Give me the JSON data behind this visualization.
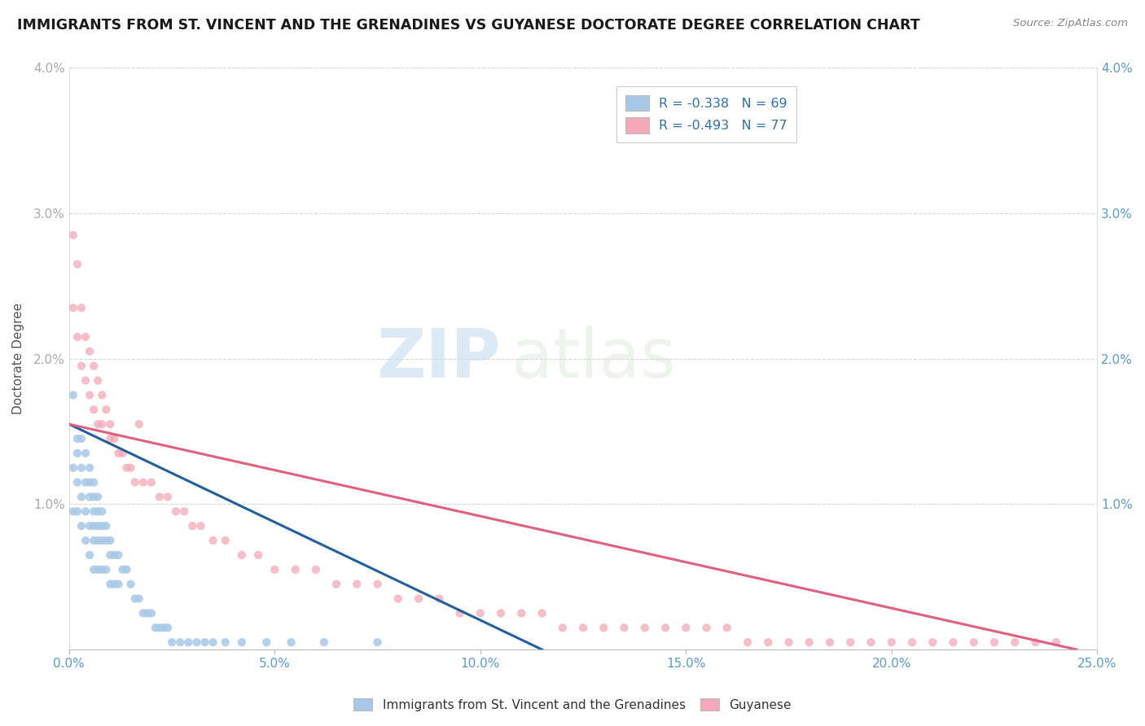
{
  "title": "IMMIGRANTS FROM ST. VINCENT AND THE GRENADINES VS GUYANESE DOCTORATE DEGREE CORRELATION CHART",
  "source_text": "Source: ZipAtlas.com",
  "ylabel": "Doctorate Degree",
  "xlim": [
    0.0,
    0.25
  ],
  "ylim": [
    0.0,
    0.04
  ],
  "xtick_values": [
    0.0,
    0.05,
    0.1,
    0.15,
    0.2,
    0.25
  ],
  "ytick_values": [
    0.0,
    0.01,
    0.02,
    0.03,
    0.04
  ],
  "legend_labels": [
    "R = -0.338   N = 69",
    "R = -0.493   N = 77"
  ],
  "legend_bottom_labels": [
    "Immigrants from St. Vincent and the Grenadines",
    "Guyanese"
  ],
  "series1_color": "#a8c8e8",
  "series2_color": "#f4a8b8",
  "series1_line_color": "#2060a0",
  "series2_line_color": "#e06080",
  "watermark_zip": "ZIP",
  "watermark_atlas": "atlas",
  "series1_x": [
    0.001,
    0.001,
    0.001,
    0.002,
    0.002,
    0.002,
    0.002,
    0.003,
    0.003,
    0.003,
    0.003,
    0.004,
    0.004,
    0.004,
    0.004,
    0.005,
    0.005,
    0.005,
    0.005,
    0.005,
    0.006,
    0.006,
    0.006,
    0.006,
    0.006,
    0.006,
    0.007,
    0.007,
    0.007,
    0.007,
    0.007,
    0.008,
    0.008,
    0.008,
    0.008,
    0.009,
    0.009,
    0.009,
    0.01,
    0.01,
    0.01,
    0.011,
    0.011,
    0.012,
    0.012,
    0.013,
    0.014,
    0.015,
    0.016,
    0.017,
    0.018,
    0.019,
    0.02,
    0.021,
    0.022,
    0.023,
    0.024,
    0.025,
    0.027,
    0.029,
    0.031,
    0.033,
    0.035,
    0.038,
    0.042,
    0.048,
    0.054,
    0.062,
    0.075
  ],
  "series1_y": [
    0.0175,
    0.0125,
    0.0095,
    0.0145,
    0.0135,
    0.0115,
    0.0095,
    0.0145,
    0.0125,
    0.0105,
    0.0085,
    0.0135,
    0.0115,
    0.0095,
    0.0075,
    0.0125,
    0.0115,
    0.0105,
    0.0085,
    0.0065,
    0.0115,
    0.0105,
    0.0095,
    0.0085,
    0.0075,
    0.0055,
    0.0105,
    0.0095,
    0.0085,
    0.0075,
    0.0055,
    0.0095,
    0.0085,
    0.0075,
    0.0055,
    0.0085,
    0.0075,
    0.0055,
    0.0075,
    0.0065,
    0.0045,
    0.0065,
    0.0045,
    0.0065,
    0.0045,
    0.0055,
    0.0055,
    0.0045,
    0.0035,
    0.0035,
    0.0025,
    0.0025,
    0.0025,
    0.0015,
    0.0015,
    0.0015,
    0.0015,
    0.0005,
    0.0005,
    0.0005,
    0.0005,
    0.0005,
    0.0005,
    0.0005,
    0.0005,
    0.0005,
    0.0005,
    0.0005,
    0.0005
  ],
  "series2_x": [
    0.001,
    0.001,
    0.002,
    0.002,
    0.003,
    0.003,
    0.004,
    0.004,
    0.005,
    0.005,
    0.006,
    0.006,
    0.007,
    0.007,
    0.008,
    0.008,
    0.009,
    0.01,
    0.01,
    0.011,
    0.012,
    0.013,
    0.014,
    0.015,
    0.016,
    0.017,
    0.018,
    0.02,
    0.022,
    0.024,
    0.026,
    0.028,
    0.03,
    0.032,
    0.035,
    0.038,
    0.042,
    0.046,
    0.05,
    0.055,
    0.06,
    0.065,
    0.07,
    0.075,
    0.08,
    0.085,
    0.09,
    0.095,
    0.1,
    0.105,
    0.11,
    0.115,
    0.12,
    0.125,
    0.13,
    0.135,
    0.14,
    0.145,
    0.15,
    0.155,
    0.16,
    0.165,
    0.17,
    0.175,
    0.18,
    0.185,
    0.19,
    0.195,
    0.2,
    0.205,
    0.21,
    0.215,
    0.22,
    0.225,
    0.23,
    0.235,
    0.24
  ],
  "series2_y": [
    0.0285,
    0.0235,
    0.0265,
    0.0215,
    0.0235,
    0.0195,
    0.0215,
    0.0185,
    0.0205,
    0.0175,
    0.0195,
    0.0165,
    0.0185,
    0.0155,
    0.0175,
    0.0155,
    0.0165,
    0.0155,
    0.0145,
    0.0145,
    0.0135,
    0.0135,
    0.0125,
    0.0125,
    0.0115,
    0.0155,
    0.0115,
    0.0115,
    0.0105,
    0.0105,
    0.0095,
    0.0095,
    0.0085,
    0.0085,
    0.0075,
    0.0075,
    0.0065,
    0.0065,
    0.0055,
    0.0055,
    0.0055,
    0.0045,
    0.0045,
    0.0045,
    0.0035,
    0.0035,
    0.0035,
    0.0025,
    0.0025,
    0.0025,
    0.0025,
    0.0025,
    0.0015,
    0.0015,
    0.0015,
    0.0015,
    0.0015,
    0.0015,
    0.0015,
    0.0015,
    0.0015,
    0.0005,
    0.0005,
    0.0005,
    0.0005,
    0.0005,
    0.0005,
    0.0005,
    0.0005,
    0.0005,
    0.0005,
    0.0005,
    0.0005,
    0.0005,
    0.0005,
    0.0005,
    0.0005
  ],
  "line1_x": [
    0.0,
    0.115
  ],
  "line1_y": [
    0.0155,
    0.0
  ],
  "line2_x": [
    0.0,
    0.245
  ],
  "line2_y": [
    0.0155,
    0.0
  ]
}
